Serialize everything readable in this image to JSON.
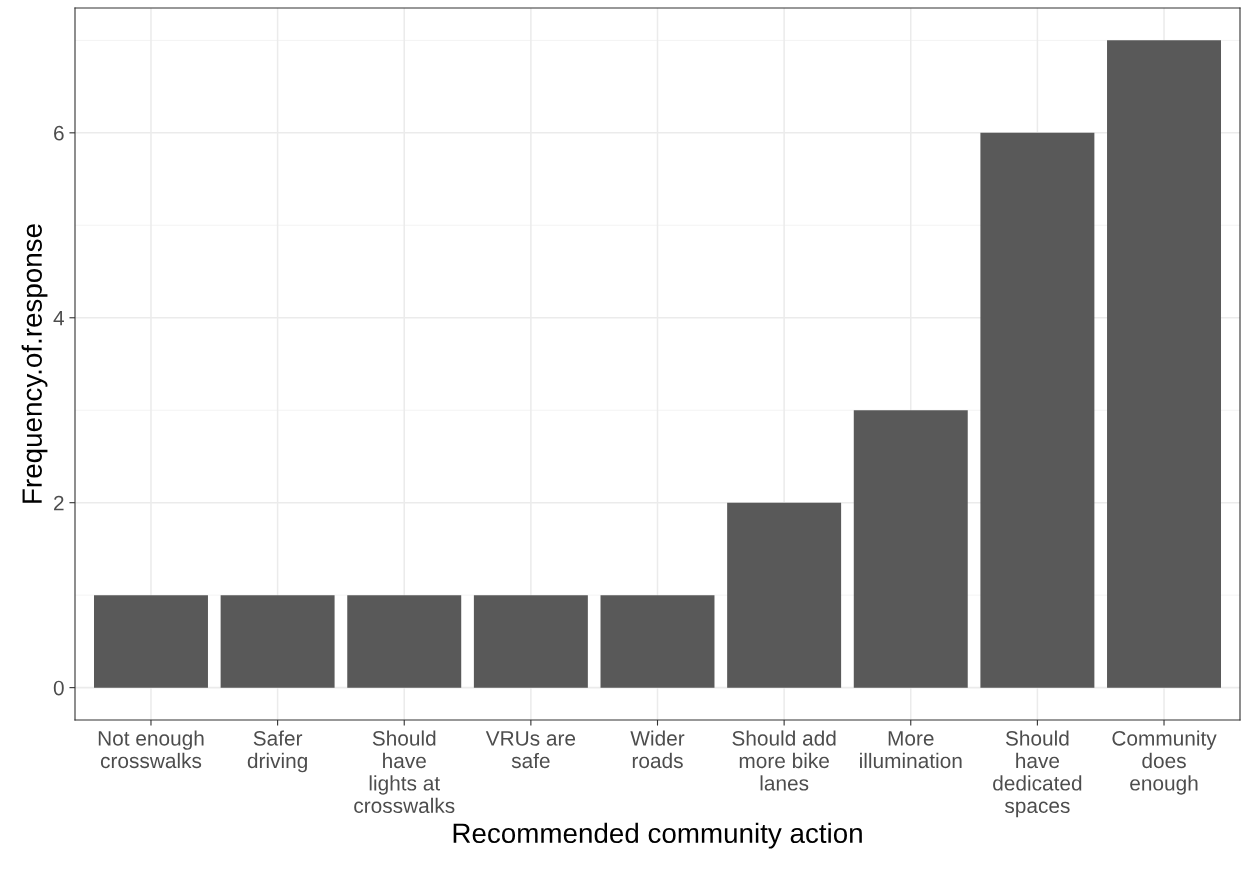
{
  "chart_data": {
    "type": "bar",
    "xlabel": "Recommended community action",
    "ylabel": "Frequency.of.response",
    "categories": [
      "Not enough\ncrosswalks",
      "Safer\ndriving",
      "Should\nhave\nlights at\ncrosswalks",
      "VRUs are\nsafe",
      "Wider\nroads",
      "Should add\nmore bike\nlanes",
      "More\nillumination",
      "Should\nhave\ndedicated\nspaces",
      "Community\ndoes\nenough"
    ],
    "values": [
      1,
      1,
      1,
      1,
      1,
      2,
      3,
      6,
      7
    ],
    "color": "#595959",
    "ylim": [
      -0.35,
      7.35
    ],
    "yticks": [
      0,
      2,
      4,
      6
    ],
    "grid": true
  }
}
